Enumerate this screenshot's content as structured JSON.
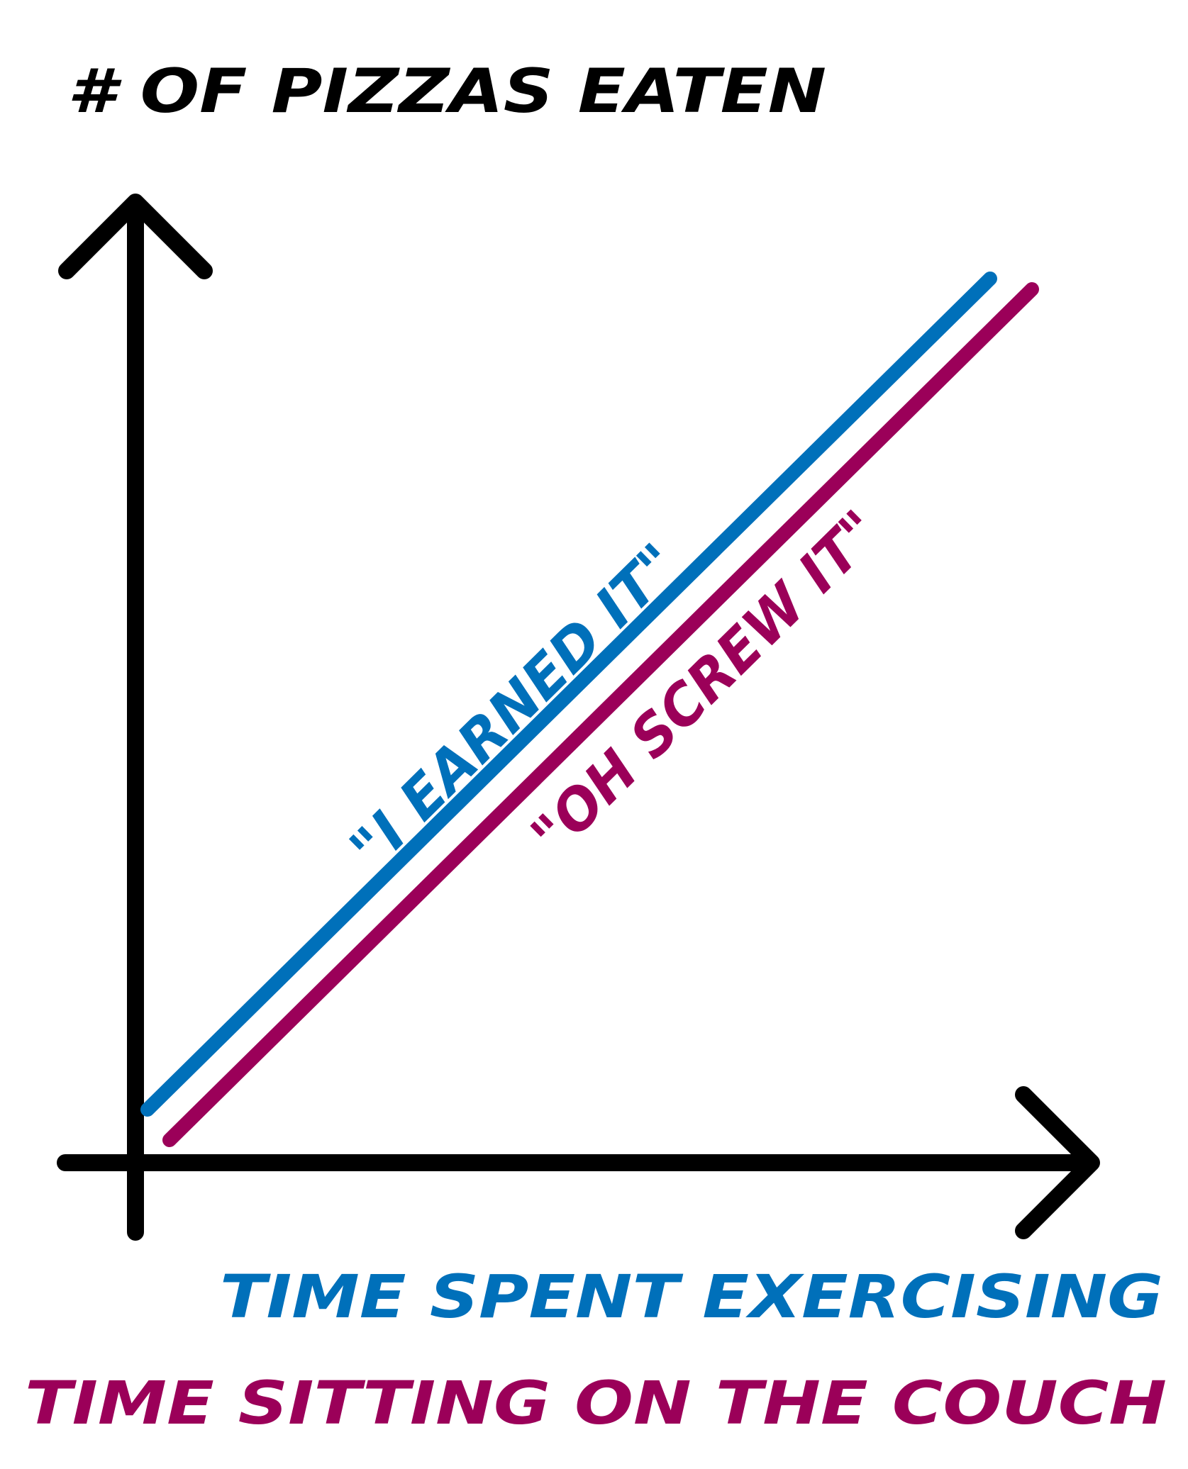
{
  "chart_data": {
    "type": "line",
    "title": "",
    "ylabel": "# OF PIZZAS EATEN",
    "xlabels": [
      {
        "text": "TIME SPENT EXERCISING",
        "color": "#0070BA"
      },
      {
        "text": "TIME SITTING ON THE COUCH",
        "color": "#9B0059"
      }
    ],
    "axis_color": "#000000",
    "grid": false,
    "legend": "none",
    "series": [
      {
        "name": "\"I EARNED IT\"",
        "color": "#0070BA",
        "x": [
          0,
          1
        ],
        "y": [
          0,
          1
        ]
      },
      {
        "name": "\"OH SCREW IT\"",
        "color": "#9B0059",
        "x": [
          0,
          1
        ],
        "y": [
          0,
          1
        ]
      }
    ]
  }
}
